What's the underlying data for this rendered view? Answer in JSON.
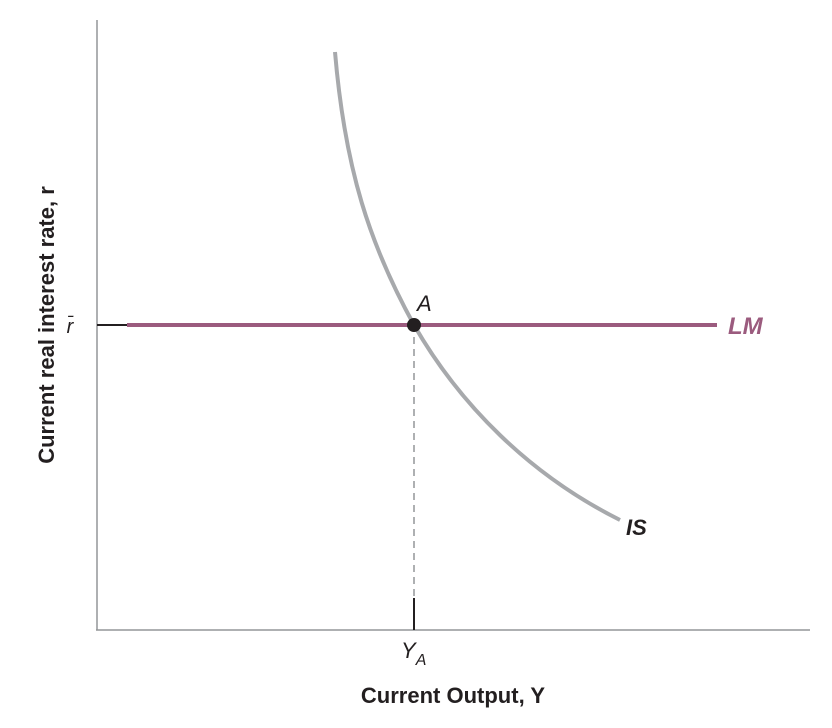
{
  "diagram": {
    "y_axis_title": "Current real interest rate, r",
    "x_axis_title": "Current Output, Y",
    "r_bar_label": "r̄",
    "y_a_label": "Y",
    "y_a_subscript": "A",
    "point_label": "A",
    "lm_label": "LM",
    "is_label": "IS",
    "colors": {
      "lm": "#9b5b7e",
      "is": "#a7a9ac",
      "axis": "#939598",
      "text": "#231f20",
      "point": "#231f20",
      "dashed": "#939598"
    }
  }
}
